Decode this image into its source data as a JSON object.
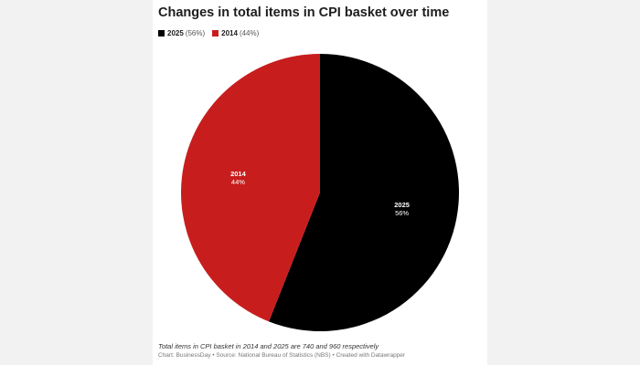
{
  "chart_data": {
    "type": "pie",
    "title": "Changes in total items in CPI basket over time",
    "slices": [
      {
        "label": "2025",
        "value": 56,
        "pct_text": "56%",
        "legend_pct": "(56%)",
        "color": "#000000"
      },
      {
        "label": "2014",
        "value": 44,
        "pct_text": "44%",
        "legend_pct": "(44%)",
        "color": "#c71e1d"
      }
    ],
    "legend_placement": "top-left",
    "note": "Total items in CPI basket in 2014 and 2025 are 740 and 960 respectively",
    "source": "Chart: BusinessDay • Source: National Bureau of Statistics (NBS) • Created with Datawrapper"
  }
}
